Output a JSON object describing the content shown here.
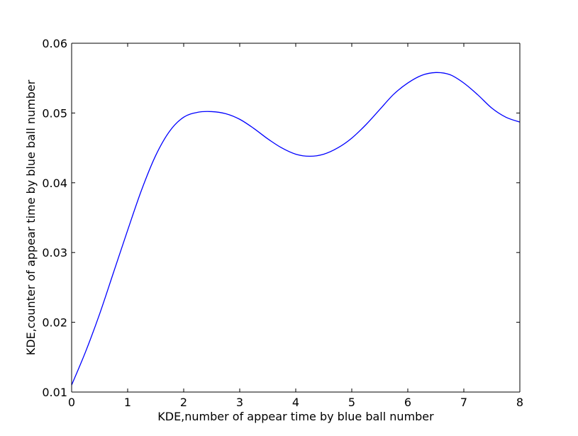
{
  "chart_data": {
    "type": "line",
    "title": "",
    "xlabel": "KDE,number of appear time by blue ball number",
    "ylabel": "KDE,counter of appear time by blue ball number",
    "xlim": [
      0,
      8
    ],
    "ylim": [
      0.01,
      0.06
    ],
    "grid": false,
    "x_ticks": [
      0,
      1,
      2,
      3,
      4,
      5,
      6,
      7,
      8
    ],
    "x_tick_labels": [
      "0",
      "1",
      "2",
      "3",
      "4",
      "5",
      "6",
      "7",
      "8"
    ],
    "y_ticks": [
      0.01,
      0.02,
      0.03,
      0.04,
      0.05,
      0.06
    ],
    "y_tick_labels": [
      "0.01",
      "0.02",
      "0.03",
      "0.04",
      "0.05",
      "0.06"
    ],
    "series": [
      {
        "name": "KDE",
        "color": "#0000ff",
        "x": [
          0,
          0.25,
          0.5,
          0.75,
          1.0,
          1.25,
          1.5,
          1.75,
          2.0,
          2.25,
          2.5,
          2.75,
          3.0,
          3.25,
          3.5,
          3.75,
          4.0,
          4.25,
          4.5,
          4.75,
          5.0,
          5.25,
          5.5,
          5.75,
          6.0,
          6.25,
          6.5,
          6.75,
          7.0,
          7.25,
          7.5,
          7.75,
          8.0
        ],
        "y": [
          0.011,
          0.0158,
          0.0212,
          0.0272,
          0.0332,
          0.039,
          0.0439,
          0.0474,
          0.0494,
          0.0501,
          0.0502,
          0.0499,
          0.0491,
          0.0478,
          0.0463,
          0.045,
          0.0441,
          0.0438,
          0.0441,
          0.045,
          0.0464,
          0.0483,
          0.0505,
          0.0527,
          0.0543,
          0.0554,
          0.0558,
          0.0555,
          0.0543,
          0.0526,
          0.0507,
          0.0494,
          0.0487
        ]
      }
    ]
  }
}
